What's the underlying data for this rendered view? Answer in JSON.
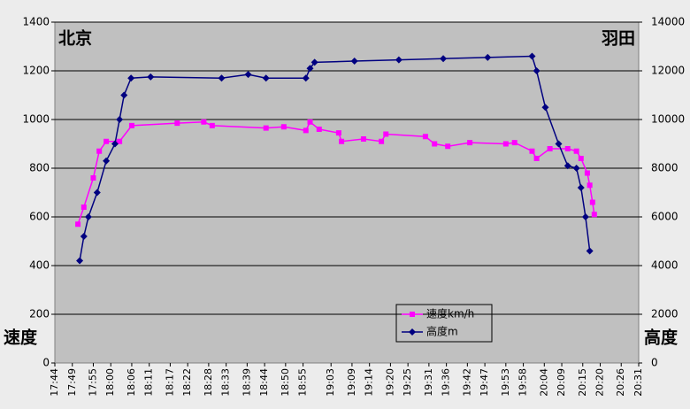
{
  "chart_data": {
    "type": "line",
    "annotations": [
      "北京",
      "羽田",
      "速度",
      "高度"
    ],
    "xlim": [
      1064,
      1231
    ],
    "xticks": [
      {
        "value": 1064,
        "label": "17:44"
      },
      {
        "value": 1069,
        "label": "17:49"
      },
      {
        "value": 1075,
        "label": "17:55"
      },
      {
        "value": 1080,
        "label": "18:00"
      },
      {
        "value": 1086,
        "label": "18:06"
      },
      {
        "value": 1091,
        "label": "18:11"
      },
      {
        "value": 1097,
        "label": "18:17"
      },
      {
        "value": 1102,
        "label": "18:22"
      },
      {
        "value": 1108,
        "label": "18:28"
      },
      {
        "value": 1113,
        "label": "18:33"
      },
      {
        "value": 1119,
        "label": "18:39"
      },
      {
        "value": 1124,
        "label": "18:44"
      },
      {
        "value": 1130,
        "label": "18:50"
      },
      {
        "value": 1135,
        "label": "18:55"
      },
      {
        "value": 1143,
        "label": "19:03"
      },
      {
        "value": 1149,
        "label": "19:09"
      },
      {
        "value": 1154,
        "label": "19:14"
      },
      {
        "value": 1160,
        "label": "19:20"
      },
      {
        "value": 1165,
        "label": "19:25"
      },
      {
        "value": 1171,
        "label": "19:31"
      },
      {
        "value": 1176,
        "label": "19:36"
      },
      {
        "value": 1182,
        "label": "19:42"
      },
      {
        "value": 1187,
        "label": "19:47"
      },
      {
        "value": 1193,
        "label": "19:53"
      },
      {
        "value": 1198,
        "label": "19:58"
      },
      {
        "value": 1204,
        "label": "20:04"
      },
      {
        "value": 1209,
        "label": "20:09"
      },
      {
        "value": 1215,
        "label": "20:15"
      },
      {
        "value": 1220,
        "label": "20:20"
      },
      {
        "value": 1226,
        "label": "20:26"
      },
      {
        "value": 1231,
        "label": "20:31"
      }
    ],
    "ylim": [
      0,
      1400
    ],
    "yticks": [
      0,
      200,
      400,
      600,
      800,
      1000,
      1200,
      1400
    ],
    "y2lim": [
      0,
      14000
    ],
    "y2ticks": [
      0,
      2000,
      4000,
      6000,
      8000,
      10000,
      12000,
      14000
    ],
    "grid": true,
    "series": [
      {
        "name": "速度km/h",
        "color": "#ff00ff",
        "marker": "square",
        "x": [
          1070.6,
          1072.3,
          1075,
          1076.7,
          1078.7,
          1082.5,
          1086,
          1099,
          1106.6,
          1109,
          1124.4,
          1129.5,
          1135.8,
          1137,
          1139.6,
          1145.2,
          1146,
          1152.3,
          1157.4,
          1158.7,
          1170,
          1172.6,
          1176.4,
          1182.7,
          1193,
          1195.5,
          1200.5,
          1201.8,
          1205.6,
          1210.7,
          1213.2,
          1214.5,
          1216.3,
          1217,
          1217.8,
          1218.3
        ],
        "values": [
          570,
          640,
          760,
          870,
          910,
          910,
          975,
          985,
          990,
          975,
          965,
          970,
          955,
          990,
          960,
          945,
          910,
          920,
          910,
          940,
          930,
          900,
          890,
          905,
          900,
          905,
          870,
          840,
          880,
          880,
          870,
          840,
          780,
          730,
          660,
          610
        ]
      },
      {
        "name": "高度m",
        "color": "#000080",
        "marker": "diamond",
        "axis": "y2",
        "x": [
          1071.1,
          1072.3,
          1073.6,
          1076.1,
          1078.7,
          1081.2,
          1082.5,
          1083.8,
          1085.8,
          1091.4,
          1111.7,
          1119.3,
          1124.4,
          1135.8,
          1137,
          1138.3,
          1149.7,
          1162.4,
          1175.1,
          1187.8,
          1200.5,
          1201.8,
          1204.3,
          1208.1,
          1210.7,
          1213.2,
          1214.5,
          1215.8,
          1217
        ],
        "values": [
          4200,
          5200,
          6000,
          7000,
          8300,
          9000,
          10000,
          11000,
          11700,
          11750,
          11700,
          11850,
          11700,
          11700,
          12100,
          12350,
          12400,
          12450,
          12500,
          12550,
          12600,
          12000,
          10500,
          9000,
          8100,
          8000,
          7200,
          6000,
          4600
        ]
      }
    ]
  }
}
